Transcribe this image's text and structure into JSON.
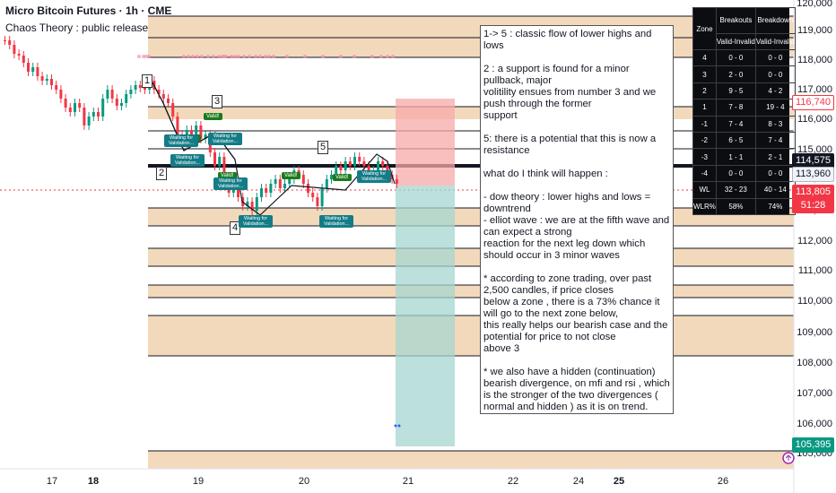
{
  "header": {
    "symbol": "Micro Bitcoin Futures · 1h · CME",
    "indicator": "Chaos Theory : public release"
  },
  "price_axis": {
    "labels": [
      "120,000",
      "119,000",
      "118,000",
      "117,000",
      "116,000",
      "115,000",
      "114,000",
      "113,000",
      "112,000",
      "111,000",
      "110,000",
      "109,000",
      "108,000",
      "107,000",
      "106,000",
      "105,000"
    ],
    "tags": [
      {
        "text": "116,740",
        "bg": "#ffffff",
        "fg": "#f23645",
        "border": "#f23645"
      },
      {
        "text": "114,575",
        "bg": "#131722",
        "fg": "#ffffff",
        "border": "#131722"
      },
      {
        "text": "113,960",
        "bg": "#f0f3fa",
        "fg": "#131722",
        "border": "#b2b5be"
      },
      {
        "text": "113,805",
        "bg": "#f23645",
        "fg": "#ffffff",
        "border": "#f23645"
      },
      {
        "text": "51:28",
        "bg": "#f23645",
        "fg": "#ffffff",
        "border": "#f23645"
      },
      {
        "text": "105,395",
        "bg": "#089981",
        "fg": "#ffffff",
        "border": "#089981"
      }
    ]
  },
  "time_axis": {
    "labels": [
      {
        "text": "17",
        "bold": false
      },
      {
        "text": "18",
        "bold": true
      },
      {
        "text": "19",
        "bold": false
      },
      {
        "text": "20",
        "bold": false
      },
      {
        "text": "21",
        "bold": false
      },
      {
        "text": "22",
        "bold": false
      },
      {
        "text": "24",
        "bold": false
      },
      {
        "text": "25",
        "bold": true
      },
      {
        "text": "26",
        "bold": false
      }
    ]
  },
  "wave_labels": [
    "1",
    "2",
    "3",
    "4",
    "5"
  ],
  "valid_label": "Valid!",
  "waiting_label": "Waiting for Validation...",
  "note": {
    "paragraphs": [
      "1-> 5 : classic flow of lower highs and lows",
      "2 : a support is found for a minor pullback, major\nvolitility ensues from number 3 and we push through the former\nsupport",
      "5: there is a potential that this is now a resistance",
      "what do I think will happen :",
      "- dow theory : lower highs and lows = downtrend\n- elliot wave : we are at the fifth wave and can expect a strong\nreaction for the next leg down which should occur in 3 minor waves",
      "* according to zone trading, over past 2,500 candles, if price closes\nbelow a zone , there is a 73% chance it will go to the next zone below,\nthis really helps our bearish case and the potential for price to not close\nabove 3",
      "* we also have a hidden (continuation) bearish divergence, on mfi and rsi , which is the stronger of the two divergences (\nnormal and hidden ) as it is on trend."
    ]
  },
  "stats_table": {
    "headers": [
      "Zone",
      "Breakouts",
      "Breakdown"
    ],
    "subheaders": [
      "Valid-Invalid",
      "Valid-Invalid"
    ],
    "rows": [
      [
        "4",
        "0 - 0",
        "0 - 0"
      ],
      [
        "3",
        "2 - 0",
        "0 - 0"
      ],
      [
        "2",
        "9 - 5",
        "4 - 2"
      ],
      [
        "1",
        "7 - 8",
        "19 - 4"
      ],
      [
        "-1",
        "7 - 4",
        "8 - 3"
      ],
      [
        "-2",
        "6 - 5",
        "7 - 4"
      ],
      [
        "-3",
        "1 - 1",
        "2 - 1"
      ],
      [
        "-4",
        "0 - 0",
        "0 - 0"
      ],
      [
        "WL",
        "32 - 23",
        "40 - 14"
      ],
      [
        "WLR%",
        "58%",
        "74%"
      ]
    ]
  },
  "colors": {
    "zone_fill": "#f2d3b1",
    "bull_candle": "#089981",
    "bear_candle": "#f23645",
    "stop_zone": "#f7a9a9",
    "target_zone": "#a6d6cf"
  },
  "icons": [
    "timer-icon"
  ]
}
